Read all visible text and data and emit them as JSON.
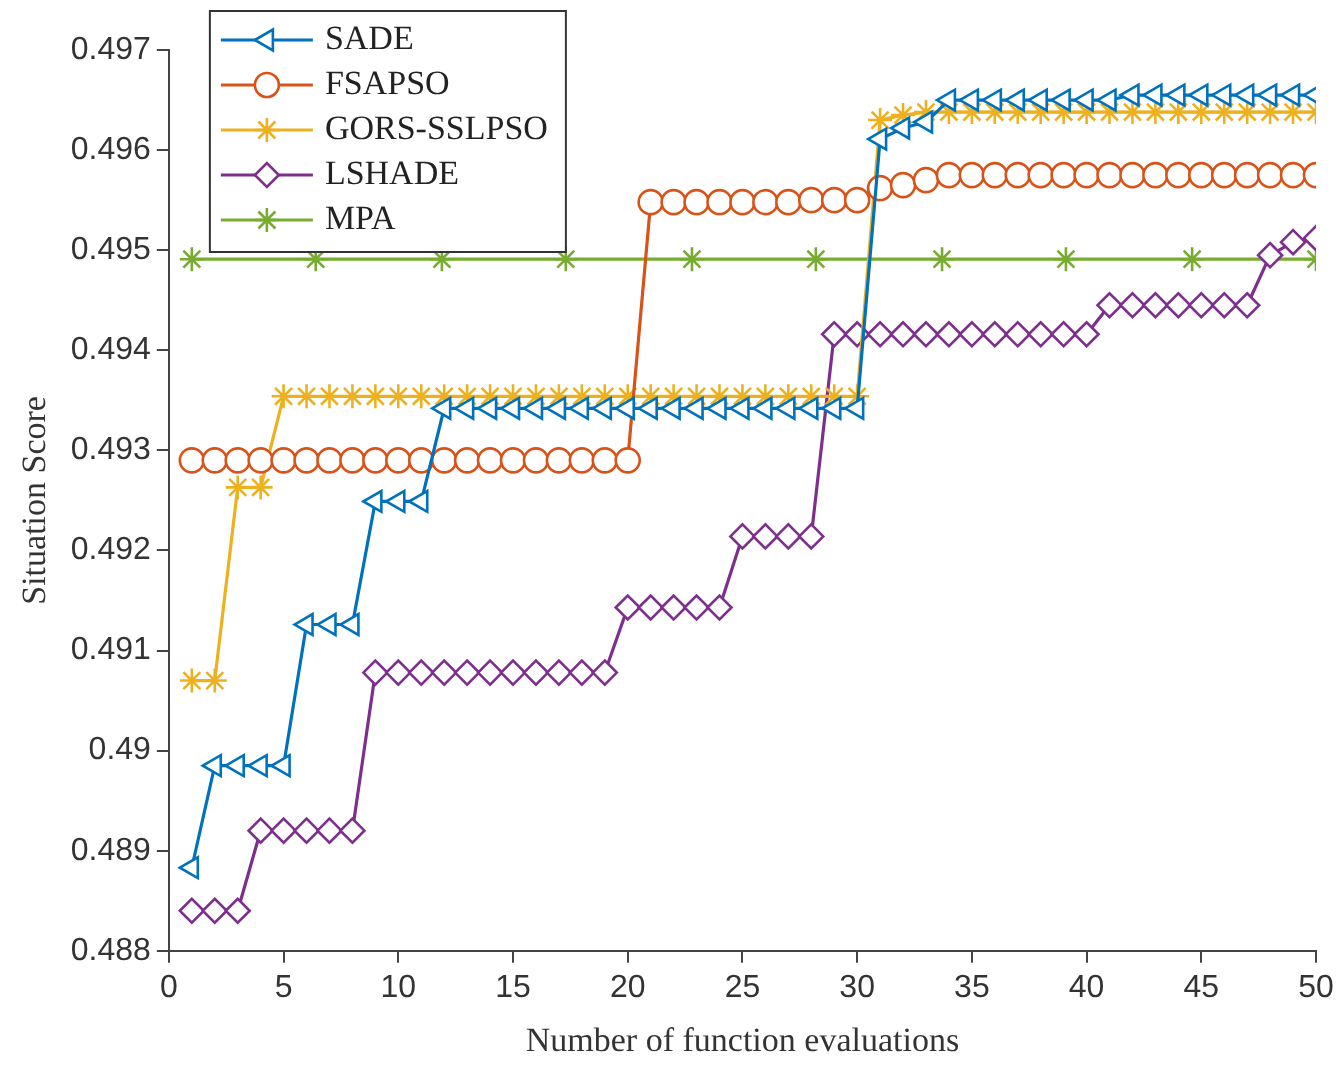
{
  "chart_data": {
    "type": "line",
    "xlabel": "Number of function evaluations",
    "ylabel": "Situation Score",
    "x": [
      1,
      2,
      3,
      4,
      5,
      6,
      7,
      8,
      9,
      10,
      11,
      12,
      13,
      14,
      15,
      16,
      17,
      18,
      19,
      20,
      21,
      22,
      23,
      24,
      25,
      26,
      27,
      28,
      29,
      30,
      31,
      32,
      33,
      34,
      35,
      36,
      37,
      38,
      39,
      40,
      41,
      42,
      43,
      44,
      45,
      46,
      47,
      48,
      49,
      50
    ],
    "xlim": [
      0,
      50
    ],
    "xticks": [
      0,
      5,
      10,
      15,
      20,
      25,
      30,
      35,
      40,
      45,
      50
    ],
    "ylim": [
      0.488,
      0.497
    ],
    "yticks": [
      0.488,
      0.489,
      0.49,
      0.491,
      0.492,
      0.493,
      0.494,
      0.495,
      0.496,
      0.497
    ],
    "grid": false,
    "legend": "top left",
    "line_style": "solid",
    "series": [
      {
        "name": "SADE",
        "color": "#0072bd",
        "marker": "triangle",
        "values": [
          0.48883,
          0.48985,
          0.48985,
          0.48985,
          0.48985,
          0.49126,
          0.49126,
          0.49126,
          0.49249,
          0.49249,
          0.49249,
          0.49342,
          0.49342,
          0.49342,
          0.49342,
          0.49342,
          0.49342,
          0.49342,
          0.49342,
          0.49342,
          0.49342,
          0.49342,
          0.49342,
          0.49342,
          0.49342,
          0.49342,
          0.49342,
          0.49342,
          0.49342,
          0.49342,
          0.49611,
          0.49622,
          0.49628,
          0.4965,
          0.4965,
          0.4965,
          0.4965,
          0.4965,
          0.4965,
          0.4965,
          0.4965,
          0.49655,
          0.49655,
          0.49655,
          0.49655,
          0.49655,
          0.49655,
          0.49655,
          0.49655,
          0.49655
        ]
      },
      {
        "name": "FSAPSO",
        "color": "#d95319",
        "marker": "circle",
        "values": [
          0.4929,
          0.4929,
          0.4929,
          0.4929,
          0.4929,
          0.4929,
          0.4929,
          0.4929,
          0.4929,
          0.4929,
          0.4929,
          0.4929,
          0.4929,
          0.4929,
          0.4929,
          0.4929,
          0.4929,
          0.4929,
          0.4929,
          0.4929,
          0.49548,
          0.49548,
          0.49548,
          0.49548,
          0.49548,
          0.49548,
          0.49548,
          0.4955,
          0.4955,
          0.4955,
          0.49562,
          0.49565,
          0.4957,
          0.49575,
          0.49575,
          0.49575,
          0.49575,
          0.49575,
          0.49575,
          0.49575,
          0.49575,
          0.49575,
          0.49575,
          0.49575,
          0.49575,
          0.49575,
          0.49575,
          0.49575,
          0.49575,
          0.49575
        ]
      },
      {
        "name": "GORS-SSLPSO",
        "color": "#edb120",
        "marker": "cross",
        "values": [
          0.4907,
          0.4907,
          0.49263,
          0.49263,
          0.49354,
          0.49354,
          0.49354,
          0.49354,
          0.49354,
          0.49354,
          0.49354,
          0.49354,
          0.49354,
          0.49354,
          0.49354,
          0.49354,
          0.49354,
          0.49354,
          0.49354,
          0.49354,
          0.49354,
          0.49354,
          0.49354,
          0.49354,
          0.49354,
          0.49354,
          0.49354,
          0.49354,
          0.49354,
          0.49354,
          0.4963,
          0.49635,
          0.49638,
          0.49638,
          0.49638,
          0.49638,
          0.49638,
          0.49638,
          0.49638,
          0.49638,
          0.49638,
          0.49638,
          0.49638,
          0.49638,
          0.49638,
          0.49638,
          0.49638,
          0.49638,
          0.49638,
          0.49638
        ]
      },
      {
        "name": "LSHADE",
        "color": "#7e2f8e",
        "marker": "diamond",
        "values": [
          0.4884,
          0.4884,
          0.4884,
          0.4892,
          0.4892,
          0.4892,
          0.4892,
          0.4892,
          0.49078,
          0.49078,
          0.49078,
          0.49078,
          0.49078,
          0.49078,
          0.49078,
          0.49078,
          0.49078,
          0.49078,
          0.49078,
          0.49143,
          0.49143,
          0.49143,
          0.49143,
          0.49143,
          0.49214,
          0.49214,
          0.49214,
          0.49214,
          0.49416,
          0.49416,
          0.49416,
          0.49416,
          0.49416,
          0.49416,
          0.49416,
          0.49416,
          0.49416,
          0.49416,
          0.49416,
          0.49416,
          0.49445,
          0.49445,
          0.49445,
          0.49445,
          0.49445,
          0.49445,
          0.49445,
          0.49495,
          0.49508,
          0.49512
        ]
      },
      {
        "name": "MPA",
        "color": "#77ac30",
        "marker": "cross",
        "x": [
          1,
          6.4,
          11.9,
          17.3,
          22.8,
          28.2,
          33.7,
          39.1,
          44.6,
          50
        ],
        "values": [
          0.49491,
          0.49491,
          0.49491,
          0.49491,
          0.49491,
          0.49491,
          0.49491,
          0.49491,
          0.49491,
          0.49491
        ]
      }
    ]
  }
}
